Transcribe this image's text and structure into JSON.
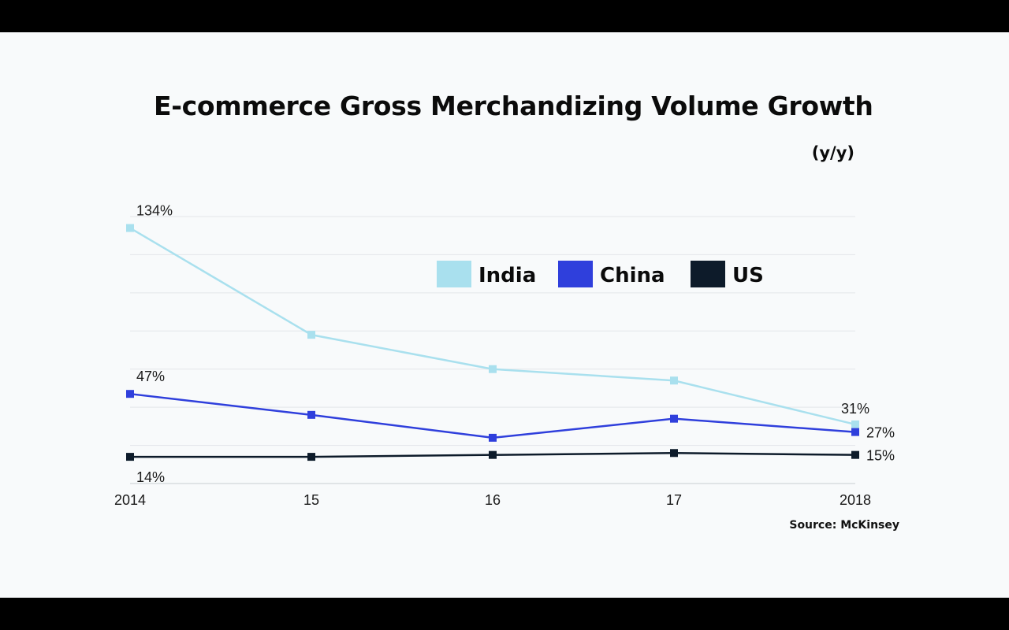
{
  "chart_data": {
    "type": "line",
    "title": "E-commerce Gross Merchandizing Volume Growth",
    "units": "(y/y)",
    "source": "Source: McKinsey",
    "categories": [
      "2014",
      "15",
      "16",
      "17",
      "2018"
    ],
    "ylim": [
      0,
      140
    ],
    "grid": true,
    "legend_position": "top-center",
    "series": [
      {
        "name": "India",
        "color": "#a9e0ee",
        "values": [
          134,
          78,
          60,
          54,
          31
        ],
        "labels": [
          "134%",
          "",
          "",
          "",
          "31%"
        ]
      },
      {
        "name": "China",
        "color": "#2f3fdc",
        "values": [
          47,
          36,
          24,
          34,
          27
        ],
        "labels": [
          "47%",
          "",
          "",
          "",
          "27%"
        ]
      },
      {
        "name": "US",
        "color": "#0d1b2a",
        "values": [
          14,
          14,
          15,
          16,
          15
        ],
        "labels": [
          "14%",
          "",
          "",
          "",
          "15%"
        ]
      }
    ]
  }
}
